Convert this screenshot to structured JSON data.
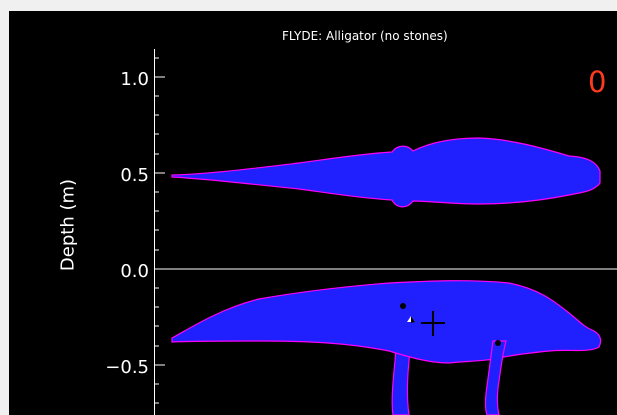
{
  "header": {
    "title": "FLYDE: Alligator (no stones)",
    "counter": "0"
  },
  "axis": {
    "label": "Depth (m)",
    "ticks": [
      "1.0",
      "0.5",
      "0.0",
      "−0.5"
    ],
    "ylim": [
      -0.7,
      1.2
    ]
  },
  "colors": {
    "background": "#000000",
    "body_fill": "#2020ff",
    "outline": "#ff00ff",
    "axis": "#ffffff",
    "counter": "#ff3a1f"
  },
  "icons": {
    "cursor": "crosshair-icon",
    "marker": "center-of-mass-marker-icon"
  }
}
